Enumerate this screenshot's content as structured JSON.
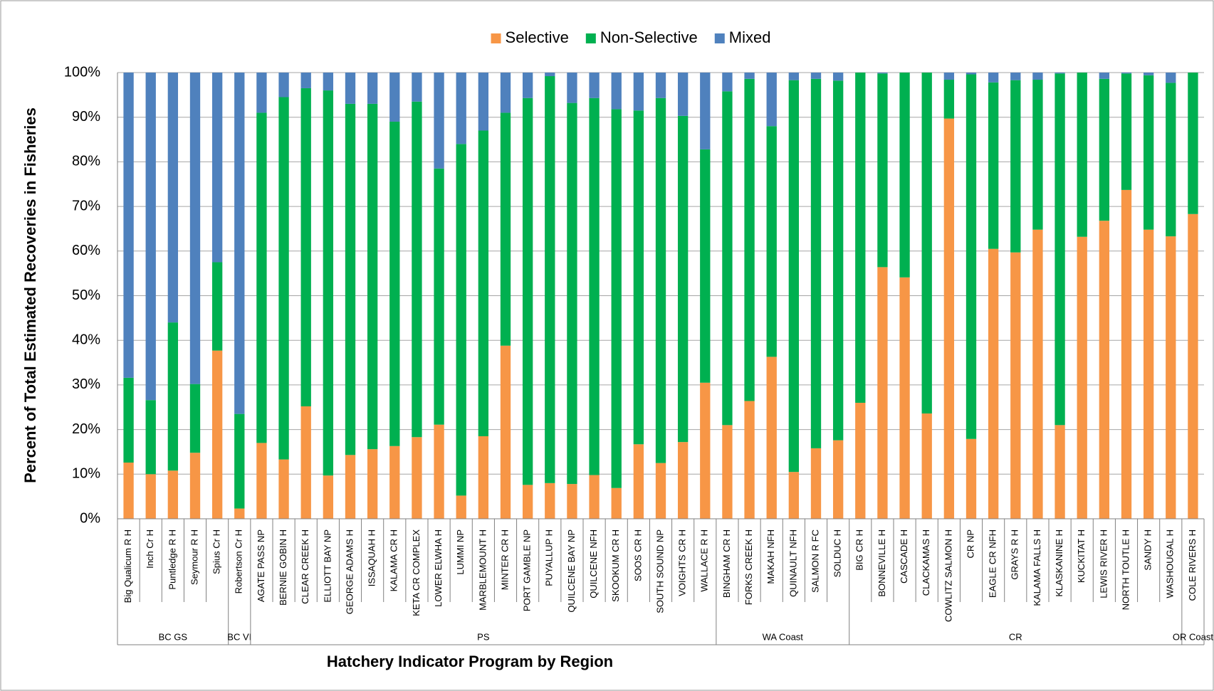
{
  "chart_data": {
    "type": "stacked_bar",
    "y_label": "Percent of Total Estimated Recoveries in Fisheries",
    "x_label": "Hatchery Indicator Program by Region",
    "categories": [
      "Big Qualicum R H",
      "Inch Cr H",
      "Puntledge R H",
      "Seymour R H",
      "Spius Cr H",
      "Robertson Cr H",
      "AGATE PASS NP",
      "BERNIE GOBIN H",
      "CLEAR CREEK H",
      "ELLIOTT BAY NP",
      "GEORGE ADAMS H",
      "ISSAQUAH H",
      "KALAMA CR H",
      "KETA CR COMPLEX",
      "LOWER ELWHA H",
      "LUMMI NP",
      "MARBLEMOUNT H",
      "MINTER CR H",
      "PORT GAMBLE NP",
      "PUYALLUP H",
      "QUILCENE BAY NP",
      "QUILCENE NFH",
      "SKOOKUM CR H",
      "SOOS CR H",
      "SOUTH SOUND NP",
      "VOIGHTS CR H",
      "WALLACE R H",
      "BINGHAM CR H",
      "FORKS CREEK H",
      "MAKAH NFH",
      "QUINAULT NFH",
      "SALMON R FC",
      "SOLDUC H",
      "BIG CR H",
      "BONNEVILLE H",
      "CASCADE H",
      "CLACKAMAS H",
      "COWLITZ SALMON H",
      "CR NP",
      "EAGLE CR NFH",
      "GRAYS R H",
      "KALAMA FALLS H",
      "KLASKANINE H",
      "KUCKITAT H",
      "LEWIS RIVER H",
      "NORTH TOUTLE H",
      "SANDY H",
      "WASHOUGAL H",
      "COLE RIVERS H"
    ],
    "regions": [
      {
        "name": "BC GS",
        "span": 5
      },
      {
        "name": "BC VI",
        "span": 1
      },
      {
        "name": "PS",
        "span": 21
      },
      {
        "name": "WA Coast",
        "span": 6
      },
      {
        "name": "CR",
        "span": 15
      },
      {
        "name": "OR Coast",
        "span": 1
      }
    ],
    "series": [
      {
        "name": "Selective",
        "color": "#f79646",
        "values": [
          12.6,
          10,
          10.8,
          14.8,
          37.7,
          2.3,
          17,
          13.3,
          25.2,
          9.7,
          14.3,
          15.6,
          16.3,
          18.3,
          21.1,
          5.2,
          18.5,
          38.8,
          7.6,
          8,
          7.8,
          9.8,
          6.9,
          16.7,
          12.5,
          17.2,
          30.5,
          21,
          26.4,
          36.3,
          10.5,
          15.8,
          17.6,
          26,
          56.4,
          54.1,
          23.6,
          89.7,
          17.9,
          60.5,
          59.7,
          64.8,
          21,
          63.2,
          66.8,
          73.7,
          64.8,
          63.3,
          68.3
        ]
      },
      {
        "name": "Non-Selective",
        "color": "#00b050",
        "values": [
          19,
          16.6,
          33.2,
          15.4,
          19.8,
          21.2,
          74,
          81.2,
          71.3,
          86.3,
          78.7,
          77.4,
          72.7,
          75.2,
          57.4,
          78.8,
          68.5,
          52.2,
          86.7,
          91.2,
          85.4,
          84.5,
          84.9,
          74.8,
          81.8,
          73.1,
          52.3,
          74.8,
          72.2,
          51.7,
          87.8,
          82.8,
          80.6,
          74,
          43.4,
          45.9,
          76.4,
          8.7,
          81.7,
          37.3,
          38.6,
          33.6,
          78.8,
          36.8,
          31.8,
          26.1,
          34.6,
          34.4,
          31.7
        ]
      },
      {
        "name": "Mixed",
        "color": "#4f81bd",
        "values": [
          68.4,
          73.4,
          56,
          69.8,
          42.5,
          76.5,
          9,
          5.5,
          3.5,
          4,
          7,
          7,
          11,
          6.5,
          21.5,
          16,
          13,
          9,
          5.7,
          0.8,
          6.8,
          5.7,
          8.2,
          8.5,
          5.7,
          9.7,
          17.2,
          4.2,
          1.4,
          12,
          1.7,
          1.4,
          1.8,
          0,
          0.2,
          0,
          0,
          1.6,
          0.4,
          2.2,
          1.7,
          1.6,
          0.2,
          0,
          1.4,
          0.2,
          0.6,
          2.3,
          0
        ]
      }
    ],
    "ylim": [
      0,
      100
    ],
    "yticks": [
      {
        "value": 0,
        "label": "0%"
      },
      {
        "value": 10,
        "label": "10%"
      },
      {
        "value": 20,
        "label": "20%"
      },
      {
        "value": 30,
        "label": "30%"
      },
      {
        "value": 40,
        "label": "40%"
      },
      {
        "value": 50,
        "label": "50%"
      },
      {
        "value": 60,
        "label": "60%"
      },
      {
        "value": 70,
        "label": "70%"
      },
      {
        "value": 80,
        "label": "80%"
      },
      {
        "value": 90,
        "label": "90%"
      },
      {
        "value": 100,
        "label": "100%"
      }
    ],
    "grid": true,
    "legend": "top"
  }
}
